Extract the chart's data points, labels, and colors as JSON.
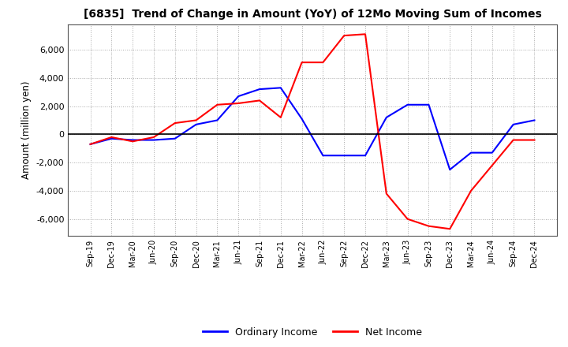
{
  "title": "[6835]  Trend of Change in Amount (YoY) of 12Mo Moving Sum of Incomes",
  "ylabel": "Amount (million yen)",
  "ylim": [
    -7200,
    7800
  ],
  "yticks": [
    -6000,
    -4000,
    -2000,
    0,
    2000,
    4000,
    6000
  ],
  "background_color": "#ffffff",
  "grid_color": "#aaaaaa",
  "legend": [
    "Ordinary Income",
    "Net Income"
  ],
  "line_colors": [
    "#0000ff",
    "#ff0000"
  ],
  "x_labels": [
    "Sep-19",
    "Dec-19",
    "Mar-20",
    "Jun-20",
    "Sep-20",
    "Dec-20",
    "Mar-21",
    "Jun-21",
    "Sep-21",
    "Dec-21",
    "Mar-22",
    "Jun-22",
    "Sep-22",
    "Dec-22",
    "Mar-23",
    "Jun-23",
    "Sep-23",
    "Dec-23",
    "Mar-24",
    "Jun-24",
    "Sep-24",
    "Dec-24"
  ],
  "ordinary_income": [
    -700,
    -300,
    -400,
    -400,
    -300,
    700,
    1000,
    2700,
    3200,
    3300,
    1100,
    -1500,
    -1500,
    -1500,
    1200,
    2100,
    2100,
    -2500,
    -1300,
    -1300,
    700,
    1000
  ],
  "net_income": [
    -700,
    -200,
    -500,
    -200,
    800,
    1000,
    2100,
    2200,
    2400,
    1200,
    5100,
    5100,
    7000,
    7100,
    -4200,
    -6000,
    -6500,
    -6700,
    -4000,
    -2200,
    -400,
    -400
  ]
}
